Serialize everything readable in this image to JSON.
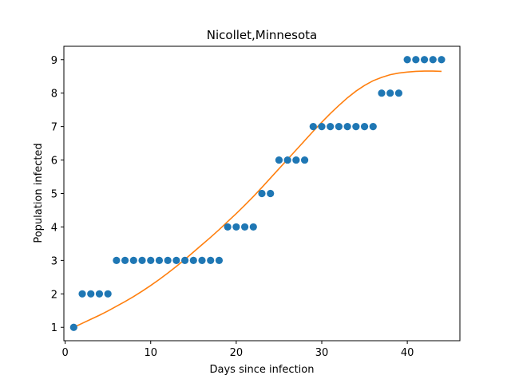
{
  "chart_data": {
    "type": "scatter",
    "title": "Nicollet,Minnesota",
    "xlabel": "Days since infection",
    "ylabel": "Population infected",
    "xlim": [
      -0.15,
      46.15
    ],
    "ylim": [
      0.6,
      9.4
    ],
    "xticks": [
      0,
      10,
      20,
      30,
      40
    ],
    "yticks": [
      1,
      2,
      3,
      4,
      5,
      6,
      7,
      8,
      9
    ],
    "grid": false,
    "series": [
      {
        "kind": "points",
        "color": "#1f77b4",
        "x": [
          1,
          2,
          3,
          4,
          5,
          6,
          7,
          8,
          9,
          10,
          11,
          12,
          13,
          14,
          15,
          16,
          17,
          18,
          19,
          20,
          21,
          22,
          23,
          24,
          25,
          26,
          27,
          28,
          29,
          30,
          31,
          32,
          33,
          34,
          35,
          36,
          37,
          38,
          39,
          40,
          41,
          42,
          43,
          44
        ],
        "y": [
          1,
          2,
          2,
          2,
          2,
          3,
          3,
          3,
          3,
          3,
          3,
          3,
          3,
          3,
          3,
          3,
          3,
          3,
          4,
          4,
          4,
          4,
          5,
          5,
          6,
          6,
          6,
          6,
          7,
          7,
          7,
          7,
          7,
          7,
          7,
          7,
          8,
          8,
          8,
          9,
          9,
          9,
          9,
          9
        ]
      },
      {
        "kind": "fit-line",
        "color": "#ff7f0e",
        "x": [
          1,
          2,
          3,
          4,
          5,
          6,
          7,
          8,
          9,
          10,
          11,
          12,
          13,
          14,
          15,
          16,
          17,
          18,
          19,
          20,
          21,
          22,
          23,
          24,
          25,
          26,
          27,
          28,
          29,
          30,
          31,
          32,
          33,
          34,
          35,
          36,
          37,
          38,
          39,
          40,
          41,
          42,
          43,
          44
        ],
        "y": [
          1.0,
          1.12,
          1.24,
          1.36,
          1.49,
          1.63,
          1.77,
          1.92,
          2.08,
          2.25,
          2.43,
          2.62,
          2.82,
          3.03,
          3.25,
          3.47,
          3.69,
          3.92,
          4.16,
          4.4,
          4.65,
          4.91,
          5.18,
          5.46,
          5.74,
          6.02,
          6.3,
          6.58,
          6.86,
          7.13,
          7.39,
          7.63,
          7.86,
          8.06,
          8.23,
          8.37,
          8.47,
          8.55,
          8.6,
          8.63,
          8.65,
          8.66,
          8.66,
          8.65
        ]
      }
    ]
  }
}
